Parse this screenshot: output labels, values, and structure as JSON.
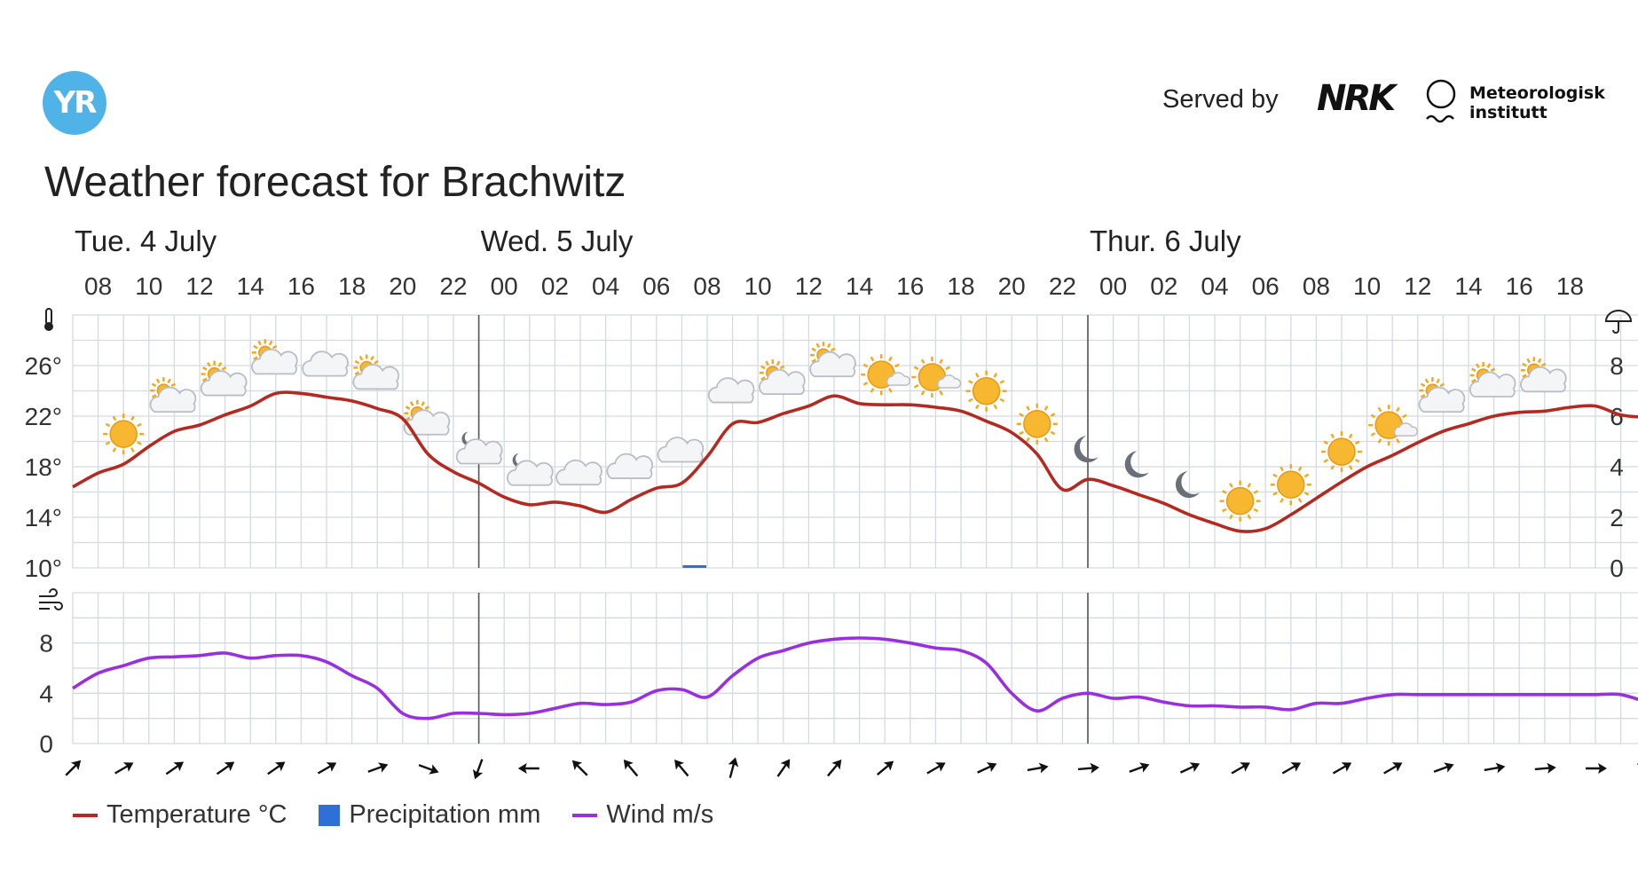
{
  "header": {
    "logo_text": "YR",
    "served_by": "Served by",
    "nrk": "NRK",
    "met_line1": "Meteorologisk",
    "met_line2": "institutt",
    "title": "Weather forecast for Brachwitz"
  },
  "legend": [
    {
      "label": "Temperature °C",
      "color": "#b52a20",
      "shape": "line"
    },
    {
      "label": "Precipitation mm",
      "color": "#2e6fd8",
      "shape": "box"
    },
    {
      "label": "Wind m/s",
      "color": "#9a2fe0",
      "shape": "line"
    }
  ],
  "chart_data": {
    "type": "line",
    "days": [
      {
        "label": "Tue. 4 July",
        "hour_index": 0
      },
      {
        "label": "Wed. 5 July",
        "hour_index": 16
      },
      {
        "label": "Thur. 6 July",
        "hour_index": 40
      }
    ],
    "hour_labels": [
      "08",
      "10",
      "12",
      "14",
      "16",
      "18",
      "20",
      "22",
      "00",
      "02",
      "04",
      "06",
      "08",
      "10",
      "12",
      "14",
      "16",
      "18",
      "20",
      "22",
      "00",
      "02",
      "04",
      "06",
      "08",
      "10",
      "12",
      "14",
      "16",
      "18"
    ],
    "temp_axis": {
      "ticks": [
        "26°",
        "22°",
        "18°",
        "14°",
        "10°"
      ],
      "values": [
        26,
        22,
        18,
        14,
        10
      ],
      "min": 10,
      "max": 30
    },
    "precip_axis": {
      "ticks": [
        "8",
        "6",
        "4",
        "2",
        "0"
      ],
      "values": [
        8,
        6,
        4,
        2,
        0
      ],
      "min": 0,
      "max": 10
    },
    "wind_axis": {
      "ticks": [
        "8",
        "4",
        "0"
      ],
      "values": [
        8,
        4,
        0
      ],
      "min": 0,
      "max": 12
    },
    "temperature_hourly": [
      16.4,
      17.5,
      18.2,
      19.6,
      20.8,
      21.3,
      22.1,
      22.8,
      23.8,
      23.8,
      23.5,
      23.2,
      22.6,
      21.8,
      19.0,
      17.6,
      16.7,
      15.6,
      15.0,
      15.2,
      14.9,
      14.4,
      15.4,
      16.3,
      16.7,
      18.8,
      21.4,
      21.5,
      22.2,
      22.8,
      23.6,
      23.0,
      22.9,
      22.9,
      22.7,
      22.4,
      21.6,
      20.7,
      19.0,
      16.2,
      17.0,
      16.5,
      15.8,
      15.1,
      14.2,
      13.5,
      12.9,
      13.1,
      14.2,
      15.5,
      16.8,
      18.0,
      18.9,
      19.9,
      20.8,
      21.4,
      22.0,
      22.3,
      22.4,
      22.7,
      22.8,
      22.1,
      21.9
    ],
    "precipitation_hourly": [
      0,
      0,
      0,
      0,
      0,
      0,
      0,
      0,
      0,
      0,
      0,
      0,
      0,
      0,
      0,
      0,
      0,
      0,
      0,
      0,
      0,
      0,
      0,
      0,
      0.05,
      0,
      0,
      0,
      0,
      0,
      0,
      0,
      0,
      0,
      0,
      0,
      0,
      0,
      0,
      0,
      0,
      0,
      0,
      0,
      0,
      0,
      0,
      0,
      0,
      0,
      0,
      0,
      0,
      0,
      0,
      0,
      0,
      0,
      0,
      0,
      0,
      0,
      0
    ],
    "wind_hourly": [
      4.4,
      5.6,
      6.2,
      6.8,
      6.9,
      7.0,
      7.2,
      6.8,
      7.0,
      7.0,
      6.5,
      5.4,
      4.4,
      2.4,
      2.0,
      2.4,
      2.4,
      2.3,
      2.4,
      2.8,
      3.2,
      3.1,
      3.3,
      4.2,
      4.3,
      3.7,
      5.4,
      6.8,
      7.4,
      8.0,
      8.3,
      8.4,
      8.3,
      8.0,
      7.6,
      7.4,
      6.4,
      4.0,
      2.6,
      3.6,
      4.0,
      3.6,
      3.7,
      3.3,
      3.0,
      3.0,
      2.9,
      2.9,
      2.7,
      3.2,
      3.2,
      3.6,
      3.9,
      3.9,
      3.9,
      3.9,
      3.9,
      3.9,
      3.9,
      3.9,
      3.9,
      3.9,
      3.3
    ],
    "symbols": [
      {
        "h": 2,
        "t": "sun"
      },
      {
        "h": 4,
        "t": "partly"
      },
      {
        "h": 6,
        "t": "partly"
      },
      {
        "h": 8,
        "t": "partly"
      },
      {
        "h": 10,
        "t": "cloud"
      },
      {
        "h": 12,
        "t": "partly"
      },
      {
        "h": 14,
        "t": "partly"
      },
      {
        "h": 16,
        "t": "night_cloud"
      },
      {
        "h": 18,
        "t": "night_cloud"
      },
      {
        "h": 20,
        "t": "cloud"
      },
      {
        "h": 22,
        "t": "cloud"
      },
      {
        "h": 24,
        "t": "cloud"
      },
      {
        "h": 26,
        "t": "cloud"
      },
      {
        "h": 28,
        "t": "partly"
      },
      {
        "h": 30,
        "t": "partly"
      },
      {
        "h": 32,
        "t": "fair"
      },
      {
        "h": 34,
        "t": "fair"
      },
      {
        "h": 36,
        "t": "sun"
      },
      {
        "h": 38,
        "t": "sun"
      },
      {
        "h": 40,
        "t": "moon"
      },
      {
        "h": 42,
        "t": "moon"
      },
      {
        "h": 44,
        "t": "moon"
      },
      {
        "h": 46,
        "t": "sun"
      },
      {
        "h": 48,
        "t": "sun"
      },
      {
        "h": 50,
        "t": "sun"
      },
      {
        "h": 52,
        "t": "fair"
      },
      {
        "h": 54,
        "t": "partly"
      },
      {
        "h": 56,
        "t": "partly"
      },
      {
        "h": 58,
        "t": "partly"
      }
    ],
    "wind_direction_arrows_deg": [
      45,
      60,
      55,
      55,
      55,
      60,
      70,
      110,
      200,
      270,
      315,
      320,
      320,
      15,
      35,
      40,
      50,
      60,
      65,
      80,
      85,
      70,
      65,
      60,
      60,
      60,
      60,
      70,
      80,
      85,
      90,
      120
    ]
  }
}
